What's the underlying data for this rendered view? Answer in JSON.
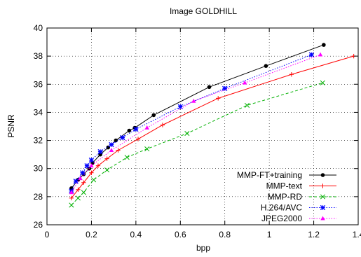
{
  "chart_data": {
    "type": "line",
    "title": "Image GOLDHILL",
    "xlabel": "bpp",
    "ylabel": "PSNR",
    "xlim": [
      0,
      1.4
    ],
    "ylim": [
      26,
      40
    ],
    "xticks": [
      "0",
      "0.2",
      "0.4",
      "0.6",
      "0.8",
      "1",
      "1.2",
      "1.4"
    ],
    "yticks": [
      "26",
      "28",
      "30",
      "32",
      "34",
      "36",
      "38",
      "40"
    ],
    "grid": true,
    "legend_position": "bottom-right",
    "series": [
      {
        "name": "MMP-FT+training",
        "color": "#000000",
        "marker": "filled-circle",
        "dash": "solid",
        "x": [
          0.11,
          0.14,
          0.165,
          0.19,
          0.205,
          0.24,
          0.275,
          0.31,
          0.37,
          0.395,
          0.48,
          0.73,
          0.985,
          1.245
        ],
        "y": [
          28.6,
          29.2,
          29.6,
          30.0,
          30.4,
          31.0,
          31.5,
          32.0,
          32.7,
          32.9,
          33.8,
          35.8,
          37.3,
          38.8
        ]
      },
      {
        "name": "MMP-text",
        "color": "#ff0000",
        "marker": "plus",
        "dash": "solid",
        "x": [
          0.11,
          0.14,
          0.165,
          0.2,
          0.23,
          0.27,
          0.32,
          0.41,
          0.52,
          0.77,
          1.1,
          1.38
        ],
        "y": [
          27.9,
          28.5,
          29.0,
          29.7,
          30.2,
          30.7,
          31.3,
          32.1,
          33.1,
          35.0,
          36.7,
          38.0
        ]
      },
      {
        "name": "MMP-RD",
        "color": "#00b000",
        "marker": "x",
        "dash": "dashed",
        "x": [
          0.11,
          0.14,
          0.165,
          0.21,
          0.27,
          0.36,
          0.45,
          0.63,
          0.9,
          1.24
        ],
        "y": [
          27.4,
          27.9,
          28.3,
          29.2,
          29.9,
          30.8,
          31.4,
          32.5,
          34.5,
          36.1
        ]
      },
      {
        "name": "H.264/AVC",
        "color": "#0000ff",
        "marker": "asterisk",
        "dash": "dotted",
        "x": [
          0.11,
          0.13,
          0.16,
          0.18,
          0.2,
          0.24,
          0.29,
          0.34,
          0.4,
          0.6,
          0.8,
          1.19
        ],
        "y": [
          28.4,
          29.1,
          29.7,
          30.2,
          30.6,
          31.2,
          31.7,
          32.2,
          32.8,
          34.4,
          35.7,
          38.1
        ]
      },
      {
        "name": "JPEG2000",
        "color": "#ff00ff",
        "marker": "triangle",
        "dash": "dotted",
        "x": [
          0.11,
          0.15,
          0.2,
          0.29,
          0.45,
          0.66,
          0.89,
          1.23
        ],
        "y": [
          28.3,
          29.3,
          30.2,
          31.3,
          32.9,
          34.8,
          36.1,
          38.1
        ]
      }
    ]
  }
}
